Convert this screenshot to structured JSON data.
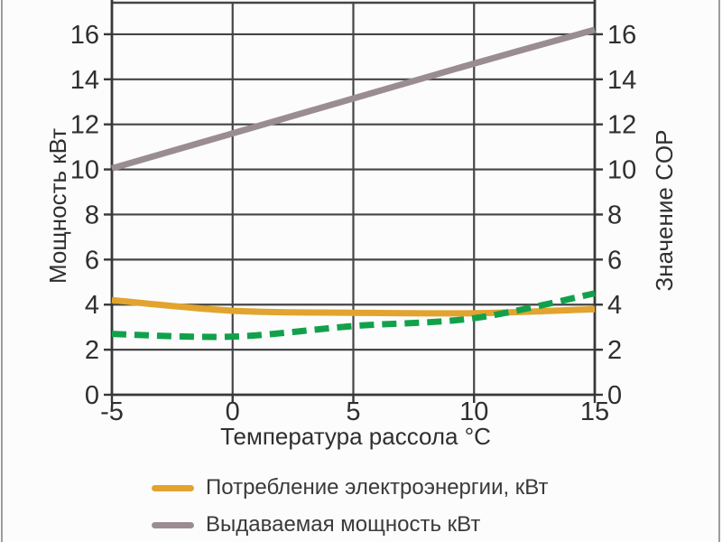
{
  "page": {
    "background": "#fcfcfc",
    "edge_border_color": "#9c9c9c"
  },
  "chart_data": {
    "type": "line",
    "title": "",
    "xlabel": "Температура рассола °C",
    "ylabel_left": "Мощность кВт",
    "ylabel_right": "Значение COP",
    "xlim": [
      -5,
      15
    ],
    "ylim": [
      0,
      17.4
    ],
    "x_ticks": [
      -5,
      0,
      5,
      10,
      15
    ],
    "y_ticks_left": [
      0,
      2,
      4,
      6,
      8,
      10,
      12,
      14,
      16
    ],
    "y_ticks_right": [
      0,
      2,
      4,
      6,
      8,
      10,
      12,
      14,
      16
    ],
    "grid": true,
    "grid_color": "#454545",
    "frame_color": "#383838",
    "legend_position": "bottom-left",
    "x": [
      -5,
      0,
      5,
      10,
      15
    ],
    "series": [
      {
        "id": "electricity-consumption",
        "legend_label": "Потребление электроэнергии, кВт",
        "color": "#E2A42E",
        "line_style": "solid",
        "values": [
          4.2,
          3.73,
          3.64,
          3.62,
          3.8
        ]
      },
      {
        "id": "output-power",
        "legend_label": "Выдаваемая мощность кВт",
        "color": "#9A8D91",
        "line_style": "solid",
        "values": [
          10.05,
          11.6,
          13.15,
          14.7,
          16.2
        ]
      },
      {
        "id": "cop-curve",
        "legend_label": null,
        "color": "#12A14B",
        "line_style": "dashed",
        "values": [
          2.7,
          2.58,
          3.05,
          3.4,
          4.5
        ]
      }
    ]
  }
}
